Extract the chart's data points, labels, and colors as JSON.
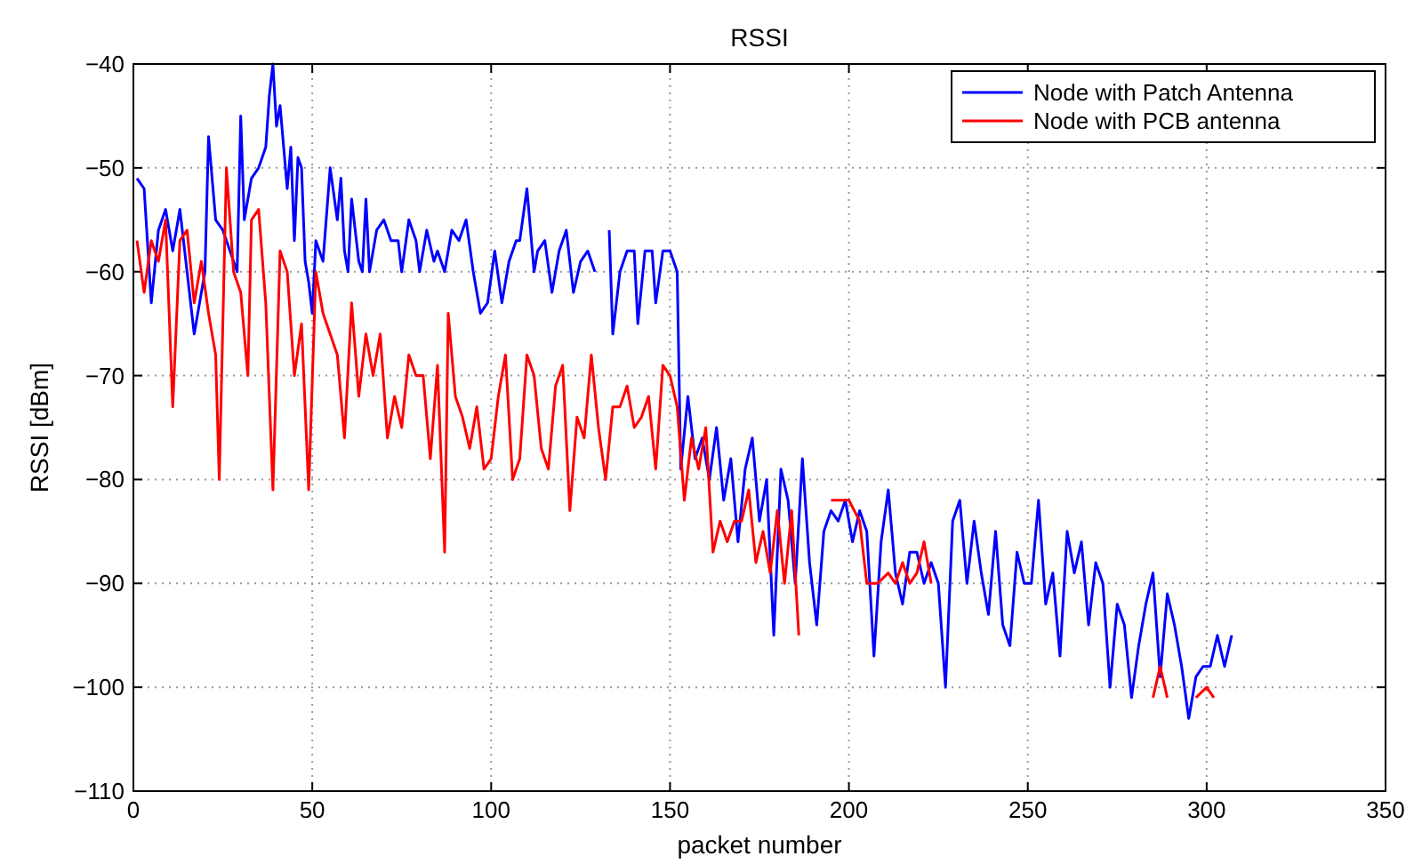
{
  "chart_data": {
    "type": "line",
    "title": "RSSI",
    "xlabel": "packet number",
    "ylabel": "RSSI [dBm]",
    "xlim": [
      0,
      350
    ],
    "xticks": [
      0,
      50,
      100,
      150,
      200,
      250,
      300,
      350
    ],
    "ylim": [
      -110,
      -40
    ],
    "yticks": [
      -110,
      -100,
      -90,
      -80,
      -70,
      -60,
      -50,
      -40
    ],
    "grid": true,
    "legend": "top right",
    "line_style": "solid",
    "marker": "none",
    "series": [
      {
        "name": "Node with Patch Antenna",
        "color": "#0000ff",
        "x": [
          1,
          3,
          5,
          7,
          9,
          11,
          13,
          15,
          17,
          19,
          20,
          21,
          23,
          25,
          27,
          29,
          30,
          31,
          33,
          35,
          37,
          38,
          39,
          40,
          41,
          43,
          44,
          45,
          46,
          47,
          48,
          49,
          50,
          51,
          53,
          55,
          57,
          58,
          59,
          60,
          61,
          63,
          64,
          65,
          66,
          68,
          70,
          72,
          74,
          75,
          77,
          79,
          80,
          82,
          84,
          85,
          87,
          89,
          91,
          93,
          95,
          97,
          99,
          101,
          103,
          105,
          107,
          108,
          110,
          112,
          113,
          115,
          117,
          119,
          121,
          123,
          125,
          127,
          129,
          131,
          133,
          134,
          136,
          138,
          140,
          141,
          143,
          145,
          146,
          148,
          150,
          152,
          153,
          155,
          157,
          159,
          161,
          163,
          165,
          167,
          169,
          171,
          173,
          175,
          177,
          179,
          181,
          183,
          185,
          187,
          189,
          191,
          193,
          195,
          197,
          199,
          201,
          203,
          205,
          207,
          209,
          211,
          213,
          215,
          217,
          219,
          221,
          223,
          225,
          227,
          229,
          231,
          233,
          235,
          237,
          239,
          241,
          243,
          245,
          247,
          249,
          251,
          253,
          255,
          257,
          259,
          261,
          263,
          265,
          267,
          269,
          271,
          273,
          275,
          277,
          279,
          281,
          283,
          285,
          287,
          289,
          291,
          293,
          295,
          297,
          299,
          301,
          303,
          305,
          307
        ],
        "values": [
          -51,
          -52,
          -63,
          -56,
          -54,
          -58,
          -54,
          -60,
          -66,
          -62,
          -60,
          -47,
          -55,
          -56,
          -58,
          -60,
          -45,
          -55,
          -51,
          -50,
          -48,
          -43,
          -40,
          -46,
          -44,
          -52,
          -48,
          -57,
          -49,
          -50,
          -59,
          -61,
          -64,
          -57,
          -59,
          -50,
          -55,
          -51,
          -58,
          -60,
          -53,
          -59,
          -60,
          -53,
          -60,
          -56,
          -55,
          -57,
          -57,
          -60,
          -55,
          -57,
          -60,
          -56,
          -59,
          -58,
          -60,
          -56,
          -57,
          -55,
          -60,
          -64,
          -63,
          -58,
          -63,
          -59,
          -57,
          -57,
          -52,
          -60,
          -58,
          -57,
          -62,
          -58,
          -56,
          -62,
          -59,
          -58,
          -60,
          null,
          -56,
          -66,
          -60,
          -58,
          -58,
          -65,
          -58,
          -58,
          -63,
          -58,
          -58,
          -60,
          -79,
          -72,
          -78,
          -76,
          -80,
          -75,
          -82,
          -78,
          -86,
          -79,
          -76,
          -84,
          -80,
          -95,
          -79,
          -82,
          -90,
          -78,
          -88,
          -94,
          -85,
          -83,
          -84,
          -82,
          -86,
          -83,
          -85,
          -97,
          -86,
          -81,
          -89,
          -92,
          -87,
          -87,
          -90,
          -88,
          -90,
          -100,
          -84,
          -82,
          -90,
          -84,
          -89,
          -93,
          -85,
          -94,
          -96,
          -87,
          -90,
          -90,
          -82,
          -92,
          -89,
          -97,
          -85,
          -89,
          -86,
          -94,
          -88,
          -90,
          -100,
          -92,
          -94,
          -101,
          -96,
          -92,
          -89,
          -99,
          -91,
          -94,
          -98,
          -103,
          -99,
          -98,
          -98,
          -95,
          -98,
          -95
        ]
      },
      {
        "name": "Node with PCB antenna",
        "color": "#ff0000",
        "x": [
          1,
          3,
          5,
          7,
          9,
          11,
          13,
          15,
          17,
          19,
          21,
          23,
          24,
          26,
          28,
          30,
          32,
          33,
          35,
          37,
          39,
          41,
          43,
          45,
          47,
          49,
          51,
          53,
          55,
          57,
          59,
          61,
          63,
          65,
          67,
          69,
          71,
          73,
          75,
          77,
          79,
          81,
          83,
          85,
          87,
          88,
          90,
          92,
          94,
          96,
          98,
          100,
          102,
          104,
          106,
          108,
          110,
          112,
          114,
          116,
          118,
          120,
          122,
          124,
          126,
          128,
          130,
          132,
          134,
          136,
          138,
          140,
          142,
          144,
          146,
          148,
          150,
          152,
          154,
          156,
          158,
          160,
          162,
          164,
          166,
          168,
          170,
          172,
          174,
          176,
          178,
          180,
          182,
          184,
          186,
          188,
          195,
          200,
          203,
          205,
          208,
          211,
          213,
          215,
          217,
          219,
          221,
          223,
          225,
          284,
          285,
          287,
          289,
          291,
          296,
          297,
          300,
          302
        ],
        "values": [
          -57,
          -62,
          -57,
          -59,
          -55,
          -73,
          -57,
          -56,
          -63,
          -59,
          -64,
          -68,
          -80,
          -50,
          -60,
          -62,
          -70,
          -55,
          -54,
          -63,
          -81,
          -58,
          -60,
          -70,
          -65,
          -81,
          -60,
          -64,
          -66,
          -68,
          -76,
          -63,
          -72,
          -66,
          -70,
          -66,
          -76,
          -72,
          -75,
          -68,
          -70,
          -70,
          -78,
          -69,
          -87,
          -64,
          -72,
          -74,
          -77,
          -73,
          -79,
          -78,
          -72,
          -68,
          -80,
          -78,
          -68,
          -70,
          -77,
          -79,
          -71,
          -69,
          -83,
          -74,
          -76,
          -68,
          -75,
          -80,
          -73,
          -73,
          -71,
          -75,
          -74,
          -72,
          -79,
          -69,
          -70,
          -73,
          -82,
          -76,
          -79,
          -75,
          -87,
          -84,
          -86,
          -84,
          -84,
          -81,
          -88,
          -85,
          -89,
          -83,
          -90,
          -83,
          -95,
          null,
          -82,
          -82,
          -84,
          -90,
          -90,
          -89,
          -90,
          -88,
          -90,
          -89,
          -86,
          -90,
          null,
          null,
          -101,
          -98,
          -101,
          null,
          null,
          -101,
          -100,
          -101
        ]
      }
    ]
  }
}
